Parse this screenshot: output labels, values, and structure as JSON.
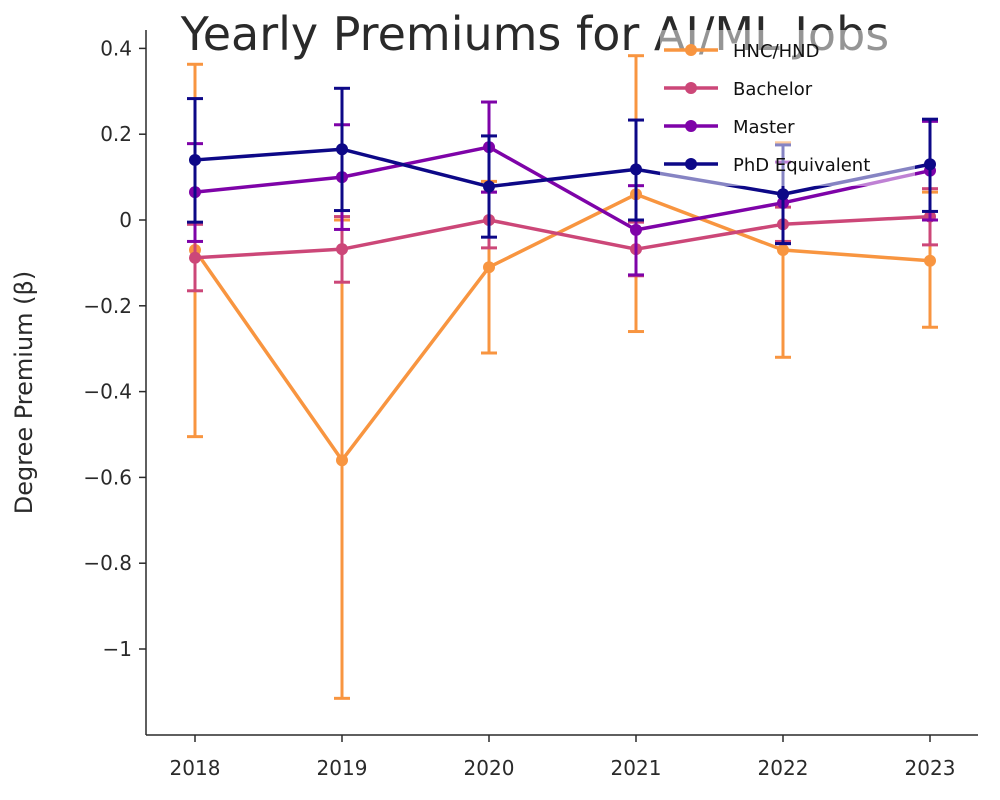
{
  "chart_data": {
    "type": "line",
    "title": "Yearly Premiums for AI/ML Jobs",
    "xlabel": "",
    "ylabel": "Degree Premium (β)",
    "categories": [
      "2018",
      "2019",
      "2020",
      "2021",
      "2022",
      "2023"
    ],
    "yticks": [
      0.4,
      0.2,
      0,
      -0.2,
      -0.4,
      -0.6,
      -0.8,
      -1
    ],
    "ytick_labels": [
      "0.4",
      "0.2",
      "0",
      "−0.2",
      "−0.4",
      "−0.6",
      "−0.8",
      "−1"
    ],
    "ylim": [
      -1.2,
      0.42
    ],
    "grid": false,
    "legend_position": "top-right",
    "series": [
      {
        "name": "HNC/HND",
        "color": "#f89540",
        "values": [
          -0.07,
          -0.56,
          -0.11,
          0.06,
          -0.07,
          -0.095
        ],
        "err_low": [
          -0.505,
          -1.115,
          -0.31,
          -0.26,
          -0.32,
          -0.25
        ],
        "err_high": [
          0.363,
          0.0,
          0.09,
          0.383,
          0.18,
          0.065
        ]
      },
      {
        "name": "Bachelor",
        "color": "#cc4778",
        "values": [
          -0.088,
          -0.068,
          0.0,
          -0.068,
          -0.01,
          0.008
        ],
        "err_low": [
          -0.165,
          -0.145,
          -0.065,
          -0.13,
          -0.05,
          -0.058
        ],
        "err_high": [
          -0.01,
          0.008,
          0.065,
          -0.005,
          0.03,
          0.073
        ]
      },
      {
        "name": "Master",
        "color": "#7e03a8",
        "values": [
          0.065,
          0.1,
          0.17,
          -0.023,
          0.04,
          0.115
        ],
        "err_low": [
          -0.05,
          -0.022,
          0.065,
          -0.128,
          -0.055,
          0.0
        ],
        "err_high": [
          0.178,
          0.222,
          0.275,
          0.08,
          0.135,
          0.23
        ]
      },
      {
        "name": "PhD Equivalent",
        "color": "#0d0887",
        "values": [
          0.14,
          0.165,
          0.078,
          0.118,
          0.06,
          0.13
        ],
        "err_low": [
          -0.005,
          0.022,
          -0.04,
          0.0,
          -0.055,
          0.02
        ],
        "err_high": [
          0.283,
          0.307,
          0.196,
          0.233,
          0.175,
          0.235
        ]
      }
    ]
  }
}
